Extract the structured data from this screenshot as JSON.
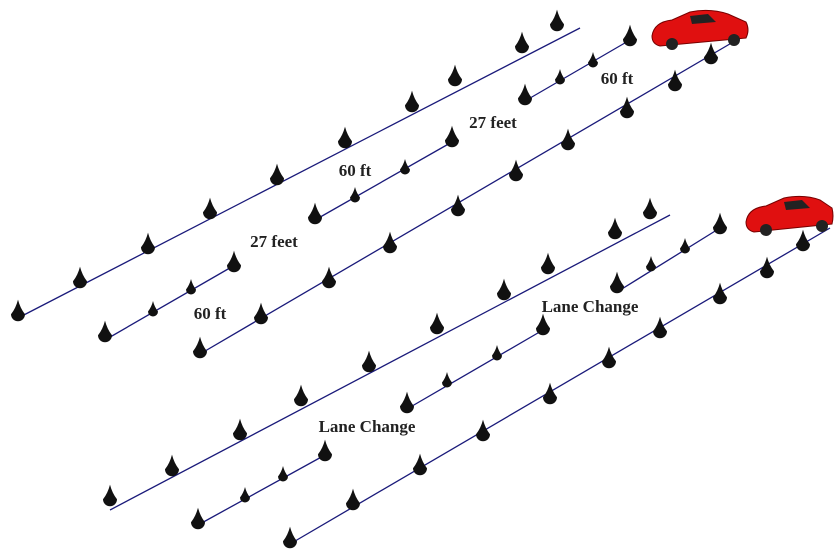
{
  "top_diagram": {
    "labels": [
      "60 ft",
      "27 feet",
      "60 ft",
      "27 feet",
      "60 ft"
    ]
  },
  "bottom_diagram": {
    "labels": [
      "Lane Change",
      "Lane Change"
    ]
  }
}
